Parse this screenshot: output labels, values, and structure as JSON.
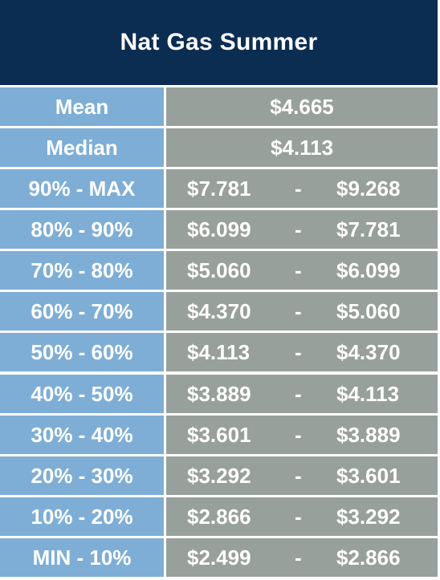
{
  "title": "Nat Gas Summer",
  "summary": [
    {
      "label": "Mean",
      "value": "$4.665"
    },
    {
      "label": "Median",
      "value": "$4.113"
    }
  ],
  "ranges": [
    {
      "label": "90% - MAX",
      "low": "$7.781",
      "sep": "-",
      "high": "$9.268"
    },
    {
      "label": "80% - 90%",
      "low": "$6.099",
      "sep": "-",
      "high": "$7.781"
    },
    {
      "label": "70% - 80%",
      "low": "$5.060",
      "sep": "-",
      "high": "$6.099"
    },
    {
      "label": "60% - 70%",
      "low": "$4.370",
      "sep": "-",
      "high": "$5.060"
    },
    {
      "label": "50% - 60%",
      "low": "$4.113",
      "sep": "-",
      "high": "$4.370"
    },
    {
      "label": "40% - 50%",
      "low": "$3.889",
      "sep": "-",
      "high": "$4.113"
    },
    {
      "label": "30% - 40%",
      "low": "$3.601",
      "sep": "-",
      "high": "$3.889"
    },
    {
      "label": "20% - 30%",
      "low": "$3.292",
      "sep": "-",
      "high": "$3.601"
    },
    {
      "label": "10% - 20%",
      "low": "$2.866",
      "sep": "-",
      "high": "$3.292"
    },
    {
      "label": "MIN - 10%",
      "low": "$2.499",
      "sep": "-",
      "high": "$2.866"
    }
  ],
  "colors": {
    "header": "#0b2d52",
    "label_cell": "#7eaed6",
    "value_cell": "#98a09b",
    "text": "#ffffff"
  }
}
